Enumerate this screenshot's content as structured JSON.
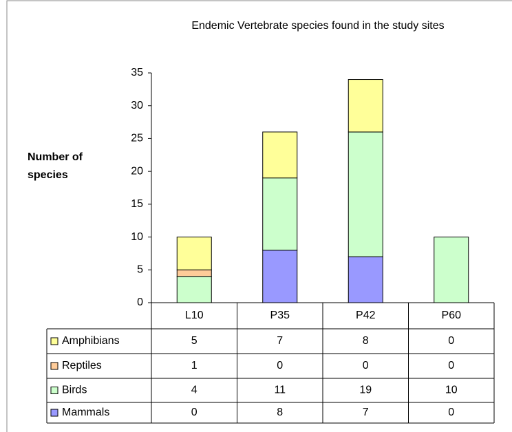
{
  "chart_data": {
    "type": "stacked_bar",
    "title": "Endemic Vertebrate species found in the study sites",
    "y_label": [
      "Number of",
      "species"
    ],
    "categories": [
      "L10",
      "P35",
      "P42",
      "P60"
    ],
    "series": [
      {
        "name": "Amphibians",
        "color": "#ffff99",
        "values": [
          5,
          7,
          8,
          0
        ]
      },
      {
        "name": "Reptiles",
        "color": "#ffcc99",
        "values": [
          1,
          0,
          0,
          0
        ]
      },
      {
        "name": "Birds",
        "color": "#ccffcc",
        "values": [
          4,
          11,
          19,
          10
        ]
      },
      {
        "name": "Mammals",
        "color": "#9999ff",
        "values": [
          0,
          8,
          7,
          0
        ]
      }
    ],
    "ylim": [
      0,
      35
    ],
    "yticks": [
      0,
      5,
      10,
      15,
      20,
      25,
      30,
      35
    ]
  }
}
